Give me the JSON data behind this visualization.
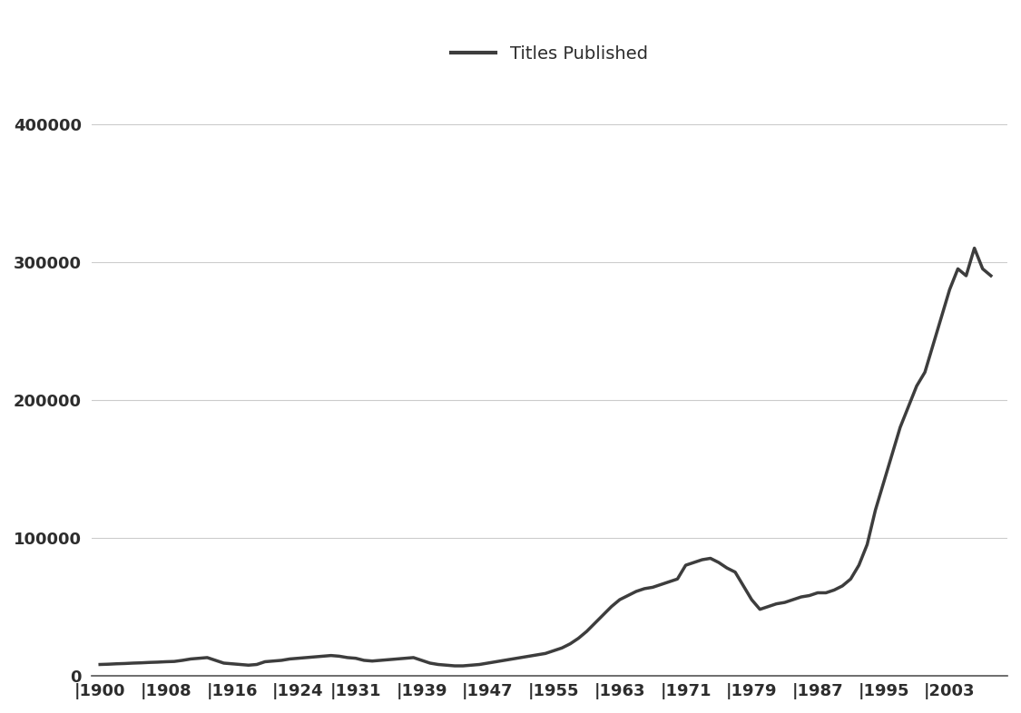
{
  "years": [
    1900,
    1901,
    1902,
    1903,
    1904,
    1905,
    1906,
    1907,
    1908,
    1909,
    1910,
    1911,
    1912,
    1913,
    1914,
    1915,
    1916,
    1917,
    1918,
    1919,
    1920,
    1921,
    1922,
    1923,
    1924,
    1925,
    1926,
    1927,
    1928,
    1929,
    1930,
    1931,
    1932,
    1933,
    1934,
    1935,
    1936,
    1937,
    1938,
    1939,
    1940,
    1941,
    1942,
    1943,
    1944,
    1945,
    1946,
    1947,
    1948,
    1949,
    1950,
    1951,
    1952,
    1953,
    1954,
    1955,
    1956,
    1957,
    1958,
    1959,
    1960,
    1961,
    1962,
    1963,
    1964,
    1965,
    1966,
    1967,
    1968,
    1969,
    1970,
    1971,
    1972,
    1973,
    1974,
    1975,
    1976,
    1977,
    1978,
    1979,
    1980,
    1981,
    1982,
    1983,
    1984,
    1985,
    1986,
    1987,
    1988,
    1989,
    1990,
    1991,
    1992,
    1993,
    1994,
    1995,
    1996,
    1997,
    1998,
    1999,
    2000,
    2001,
    2002,
    2003,
    2004,
    2005,
    2006,
    2007,
    2008
  ],
  "values": [
    8000,
    8200,
    8500,
    8700,
    9000,
    9200,
    9500,
    9700,
    10000,
    10200,
    11000,
    12000,
    12500,
    13000,
    11000,
    9000,
    8500,
    8000,
    7500,
    8000,
    10000,
    10500,
    11000,
    12000,
    12500,
    13000,
    13500,
    14000,
    14500,
    14000,
    13000,
    12500,
    11000,
    10500,
    11000,
    11500,
    12000,
    12500,
    13000,
    11000,
    9000,
    8000,
    7500,
    7000,
    7000,
    7500,
    8000,
    9000,
    10000,
    11000,
    12000,
    13000,
    14000,
    15000,
    16000,
    18000,
    20000,
    23000,
    27000,
    32000,
    38000,
    44000,
    50000,
    55000,
    58000,
    61000,
    63000,
    64000,
    66000,
    68000,
    70000,
    80000,
    82000,
    84000,
    85000,
    82000,
    78000,
    75000,
    65000,
    55000,
    48000,
    50000,
    52000,
    53000,
    55000,
    57000,
    58000,
    60000,
    60000,
    62000,
    65000,
    70000,
    80000,
    95000,
    120000,
    140000,
    160000,
    180000,
    195000,
    210000,
    220000,
    240000,
    260000,
    280000,
    295000,
    290000,
    310000,
    295000,
    290000
  ],
  "line_color": "#3d3d3d",
  "line_width": 2.5,
  "background_color": "#ffffff",
  "grid_color": "#cccccc",
  "legend_label": "Titles Published",
  "yticks": [
    0,
    100000,
    200000,
    300000,
    400000
  ],
  "xticks": [
    1900,
    1908,
    1916,
    1924,
    1931,
    1939,
    1947,
    1955,
    1963,
    1971,
    1979,
    1987,
    1995,
    2003
  ],
  "ylim": [
    0,
    430000
  ],
  "xlim": [
    1899,
    2010
  ]
}
